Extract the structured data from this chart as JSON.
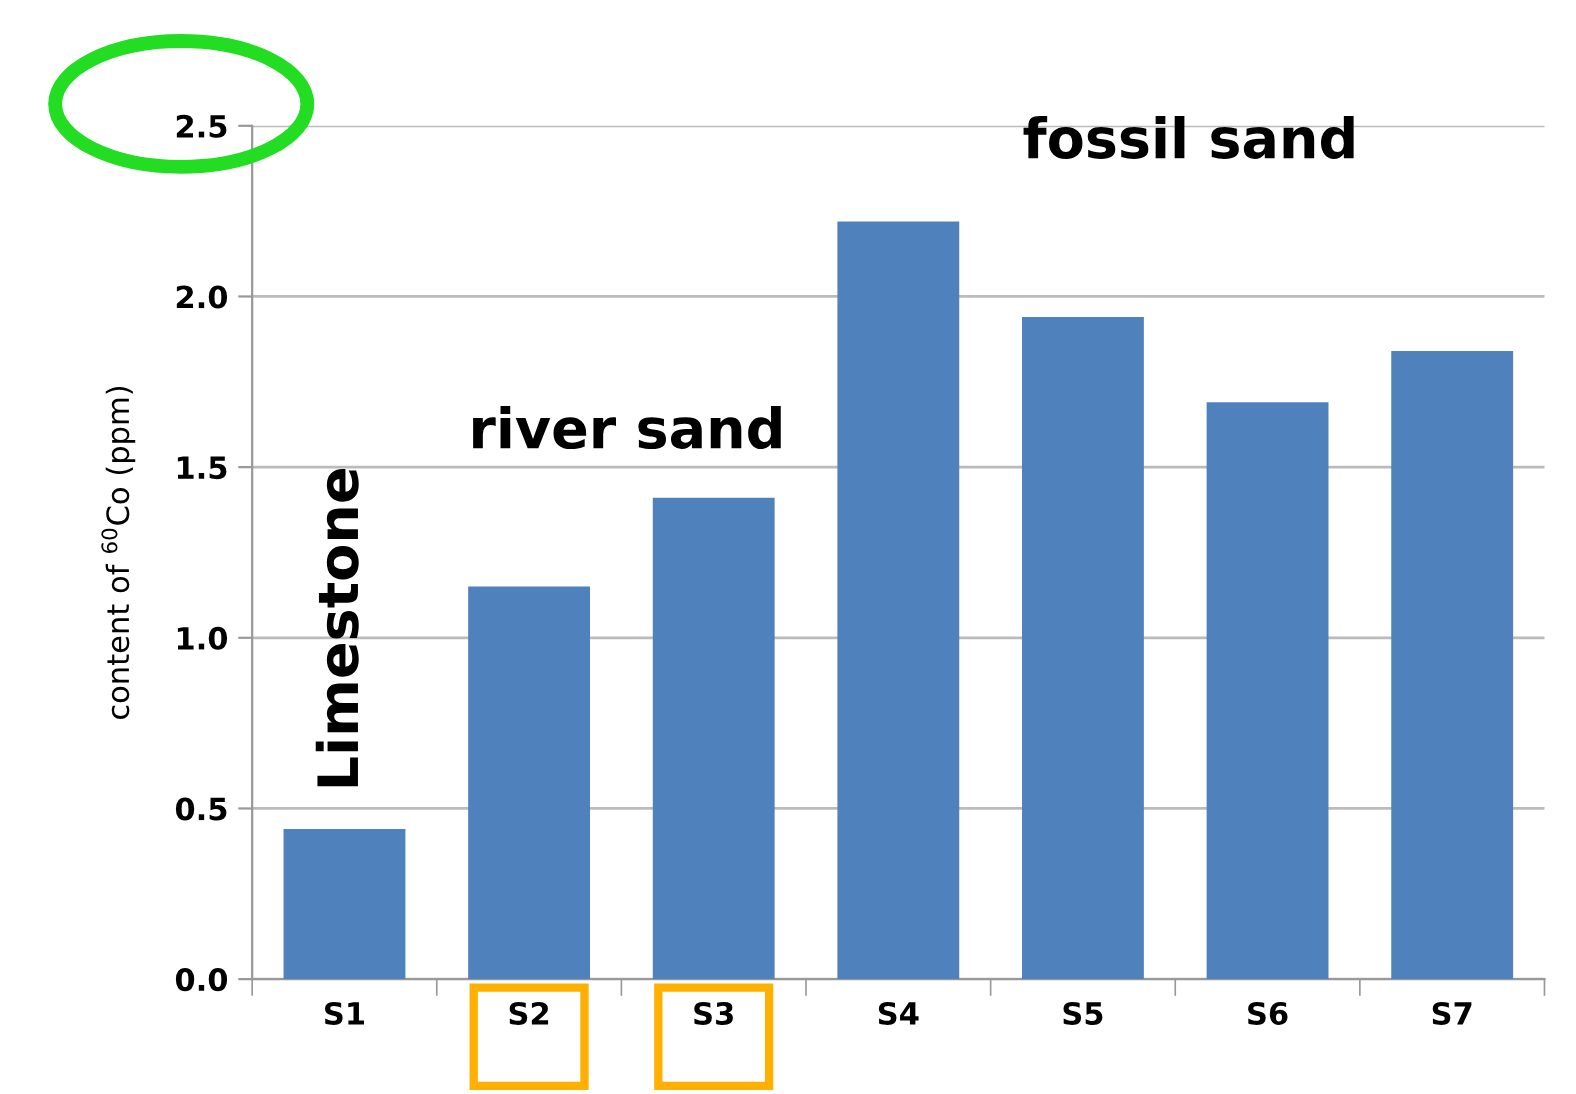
{
  "chart_data": {
    "type": "bar",
    "ylabel": "content of $^{60}$Co (ppm)",
    "categories": [
      "S1",
      "S2",
      "S3",
      "S4",
      "S5",
      "S6",
      "S7"
    ],
    "values": [
      0.44,
      1.15,
      1.41,
      2.22,
      1.94,
      1.69,
      1.84
    ],
    "color": "#4f81bd",
    "ylim": [
      0,
      2.5
    ],
    "yticks": [
      {
        "value": 0,
        "label": "0.0"
      },
      {
        "value": 0.5,
        "label": "0.5"
      },
      {
        "value": 1,
        "label": "1.0"
      },
      {
        "value": 1.5,
        "label": "1.5"
      },
      {
        "value": 2,
        "label": "2.0"
      },
      {
        "value": 2.5,
        "label": "2.5"
      }
    ],
    "grid": "y",
    "annotations": [
      "Limestone",
      "river sand",
      "fossil sand"
    ]
  }
}
